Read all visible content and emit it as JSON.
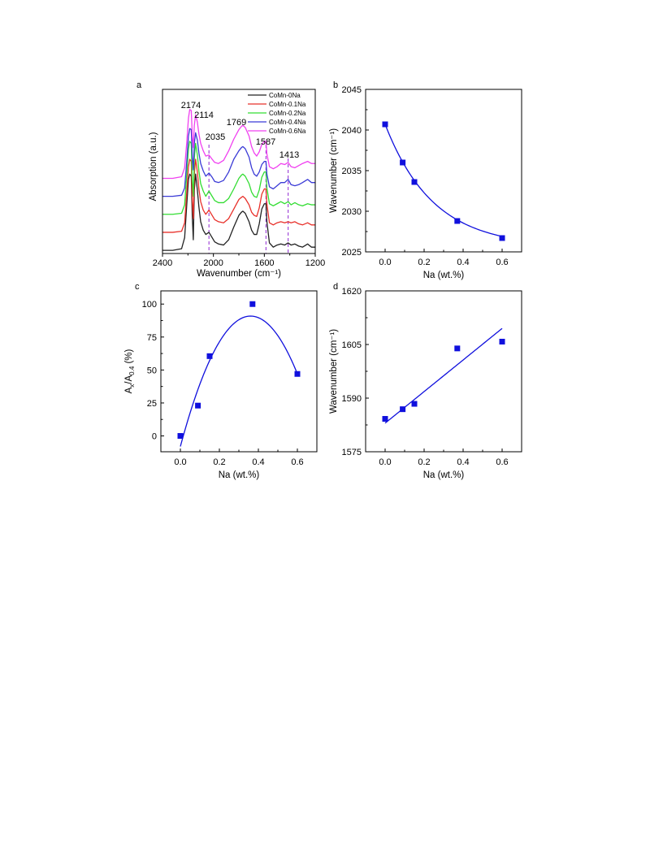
{
  "chart_data": [
    {
      "panel": "a",
      "type": "line",
      "xlabel": "Wavenumber (cm⁻¹)",
      "ylabel": "Absorption (a.u.)",
      "xlim": [
        2400,
        1200
      ],
      "x_ticks": [
        "2400",
        "2000",
        "1600",
        "1200"
      ],
      "legend": "top-right",
      "series": [
        {
          "name": "CoMn-0Na",
          "color": "#222222"
        },
        {
          "name": "CoMn-0.1Na",
          "color": "#e8302a"
        },
        {
          "name": "CoMn-0.2Na",
          "color": "#33dd33"
        },
        {
          "name": "CoMn-0.4Na",
          "color": "#3b3bd6"
        },
        {
          "name": "CoMn-0.6Na",
          "color": "#f040f0"
        }
      ],
      "x": [
        2400,
        2320,
        2250,
        2226,
        2210,
        2196,
        2186,
        2174,
        2166,
        2158,
        2150,
        2140,
        2126,
        2114,
        2100,
        2080,
        2060,
        2035,
        2010,
        1990,
        1960,
        1920,
        1880,
        1840,
        1800,
        1780,
        1769,
        1750,
        1720,
        1700,
        1680,
        1660,
        1640,
        1620,
        1600,
        1587,
        1580,
        1560,
        1530,
        1500,
        1470,
        1440,
        1413,
        1390,
        1360,
        1330,
        1300,
        1260,
        1230,
        1200
      ],
      "offsets": [
        0,
        1.7,
        3.4,
        5.1,
        6.8
      ],
      "shape_series": [
        {
          "name": "CoMn-0Na",
          "values": [
            0.3,
            0.3,
            0.45,
            1.5,
            4.5,
            7.0,
            7.5,
            7.3,
            3.5,
            1.3,
            6.0,
            7.5,
            6.0,
            4.4,
            3.0,
            2.2,
            1.8,
            2.0,
            1.5,
            1.1,
            0.9,
            0.8,
            1.3,
            2.5,
            3.6,
            3.9,
            4.0,
            3.8,
            3.0,
            2.2,
            1.8,
            1.8,
            2.8,
            4.2,
            4.7,
            4.7,
            3.0,
            1.0,
            0.6,
            0.8,
            0.9,
            0.8,
            1.0,
            0.8,
            0.9,
            0.7,
            0.6,
            0.9,
            0.6,
            0.6
          ]
        },
        {
          "name": "CoMn-0.1Na",
          "values": [
            0.3,
            0.3,
            0.4,
            1.2,
            4.0,
            6.5,
            7.2,
            7.0,
            3.3,
            1.6,
            5.8,
            7.2,
            6.0,
            4.4,
            3.2,
            2.4,
            2.0,
            2.4,
            1.9,
            1.5,
            1.3,
            1.2,
            1.6,
            2.5,
            3.4,
            3.6,
            3.7,
            3.5,
            2.9,
            2.2,
            1.9,
            1.8,
            2.6,
            3.9,
            4.4,
            4.4,
            3.0,
            1.2,
            1.0,
            1.2,
            1.3,
            1.2,
            1.3,
            1.2,
            1.3,
            1.1,
            1.0,
            1.2,
            1.0,
            1.0
          ]
        },
        {
          "name": "CoMn-0.2Na",
          "values": [
            0.3,
            0.3,
            0.4,
            1.2,
            4.0,
            6.5,
            7.2,
            7.0,
            3.5,
            2.0,
            5.6,
            7.0,
            5.9,
            4.4,
            3.2,
            2.5,
            2.0,
            2.5,
            2.0,
            1.6,
            1.4,
            1.4,
            1.8,
            2.7,
            3.7,
            4.0,
            4.1,
            3.9,
            3.2,
            2.4,
            2.0,
            1.9,
            2.6,
            3.8,
            4.3,
            4.3,
            2.8,
            1.3,
            1.1,
            1.3,
            1.5,
            1.3,
            1.5,
            1.2,
            1.4,
            1.2,
            1.1,
            1.3,
            1.2,
            1.2
          ]
        },
        {
          "name": "CoMn-0.4Na",
          "values": [
            0.3,
            0.3,
            0.4,
            1.1,
            3.5,
            6.0,
            6.7,
            6.6,
            4.0,
            2.8,
            5.3,
            6.3,
            5.6,
            4.4,
            3.4,
            2.7,
            2.2,
            2.5,
            2.1,
            1.7,
            1.6,
            1.8,
            2.6,
            3.8,
            4.6,
            4.9,
            5.0,
            4.8,
            4.0,
            3.0,
            2.4,
            2.2,
            2.6,
            3.3,
            3.6,
            3.6,
            2.4,
            1.2,
            1.0,
            1.3,
            1.6,
            1.6,
            1.9,
            1.4,
            1.3,
            1.4,
            1.6,
            1.9,
            1.6,
            1.6
          ]
        },
        {
          "name": "CoMn-0.6Na",
          "values": [
            0.3,
            0.3,
            0.45,
            1.3,
            3.6,
            6.0,
            6.8,
            6.7,
            4.3,
            3.2,
            5.3,
            6.3,
            5.6,
            4.5,
            3.6,
            2.9,
            2.4,
            2.5,
            2.1,
            1.8,
            1.7,
            2.0,
            2.9,
            4.0,
            4.9,
            5.2,
            5.3,
            5.1,
            4.3,
            3.3,
            2.7,
            2.4,
            2.8,
            3.5,
            3.8,
            3.8,
            2.6,
            1.4,
            1.2,
            1.4,
            1.7,
            1.6,
            1.8,
            1.4,
            1.3,
            1.5,
            1.7,
            1.9,
            1.7,
            1.7
          ]
        }
      ],
      "annotations": [
        {
          "text": "2174",
          "x": 2174
        },
        {
          "text": "2114",
          "x": 2114
        },
        {
          "text": "2035",
          "x": 2035
        },
        {
          "text": "1769",
          "x": 1769
        },
        {
          "text": "1587",
          "x": 1587
        },
        {
          "text": "1413",
          "x": 1413
        }
      ],
      "dashed_lines_x": [
        2035,
        1587,
        1413
      ],
      "dashed_color": "#9b3bd6"
    },
    {
      "panel": "b",
      "type": "scatter",
      "xlabel": "Na (wt.%)",
      "ylabel": "Wavenumber (cm⁻¹)",
      "xlim": [
        -0.1,
        0.7
      ],
      "ylim": [
        2025,
        2045
      ],
      "x_ticks": [
        "0.0",
        "0.2",
        "0.4",
        "0.6"
      ],
      "y_ticks": [
        "2025",
        "2030",
        "2035",
        "2040",
        "2045"
      ],
      "color": "#1010dd",
      "x": [
        0.0,
        0.09,
        0.15,
        0.37,
        0.6
      ],
      "y": [
        2040.7,
        2036.0,
        2033.6,
        2028.8,
        2026.7
      ],
      "fit": {
        "type": "exponential decay",
        "x": [
          0.0,
          0.6
        ],
        "y0": 2025.6,
        "a": 15.1,
        "t": 0.245
      }
    },
    {
      "panel": "c",
      "type": "scatter",
      "xlabel": "Na (wt.%)",
      "ylabel": "A",
      "ylabel_sub_1": "x",
      "ylabel_mid": "/A",
      "ylabel_sub_2": "0.4",
      "ylabel_tail": " (%)",
      "xlim": [
        -0.1,
        0.7
      ],
      "ylim": [
        -12,
        110
      ],
      "x_ticks": [
        "0.0",
        "0.2",
        "0.4",
        "0.6"
      ],
      "y_ticks": [
        "0",
        "25",
        "50",
        "75",
        "100"
      ],
      "color": "#1010dd",
      "x": [
        0.0,
        0.09,
        0.15,
        0.37,
        0.6
      ],
      "y": [
        0.0,
        23.0,
        60.5,
        100.0,
        47.0
      ],
      "fit": {
        "type": "polynomial",
        "x": [
          0.0,
          0.6
        ],
        "coefficients": [
          -8.0,
          549.0,
          -762.0
        ]
      }
    },
    {
      "panel": "d",
      "type": "scatter",
      "xlabel": "Na (wt.%)",
      "ylabel": "Wavenumber (cm⁻¹)",
      "xlim": [
        -0.1,
        0.7
      ],
      "ylim": [
        1575,
        1620
      ],
      "x_ticks": [
        "0.0",
        "0.2",
        "0.4",
        "0.6"
      ],
      "y_ticks": [
        "1575",
        "1590",
        "1605",
        "1620"
      ],
      "color": "#1010dd",
      "x": [
        0.0,
        0.09,
        0.15,
        0.37,
        0.6
      ],
      "y": [
        1584.2,
        1586.9,
        1588.4,
        1603.9,
        1605.8
      ],
      "fit": {
        "type": "linear",
        "x": [
          0.0,
          0.6
        ],
        "y": [
          1583.0,
          1609.5
        ]
      }
    }
  ]
}
